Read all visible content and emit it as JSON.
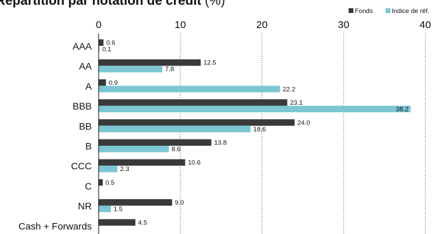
{
  "chart_data": {
    "type": "bar",
    "orientation": "horizontal",
    "title": "Répartition par notation de crédit",
    "title_unit": "(%)",
    "categories": [
      "AAA",
      "AA",
      "A",
      "BBB",
      "BB",
      "B",
      "CCC",
      "C",
      "NR",
      "Cash + Forwards"
    ],
    "series": [
      {
        "name": "Fonds",
        "color": "#3a3a3a",
        "values": [
          0.6,
          12.5,
          0.9,
          23.1,
          24.0,
          13.8,
          10.6,
          0.5,
          9.0,
          4.5
        ],
        "labels": [
          "0.6",
          "12.5",
          "0.9",
          "23.1",
          "24.0",
          "13.8",
          "10.6",
          "0.5",
          "9.0",
          "4.5"
        ]
      },
      {
        "name": "Indice de réf.",
        "color": "#7cc6d4",
        "values": [
          0.1,
          7.8,
          22.2,
          38.2,
          18.6,
          8.6,
          2.3,
          null,
          1.5,
          null
        ],
        "labels": [
          "0.1",
          "7.8",
          "22.2",
          "38.2",
          "18.6",
          "8.6",
          "2.3",
          null,
          "1.5",
          null
        ]
      }
    ],
    "xlim": [
      0,
      40
    ],
    "xticks": [
      0,
      10,
      20,
      30,
      40
    ],
    "grid": "vertical-dotted",
    "legend_position": "top-right"
  }
}
